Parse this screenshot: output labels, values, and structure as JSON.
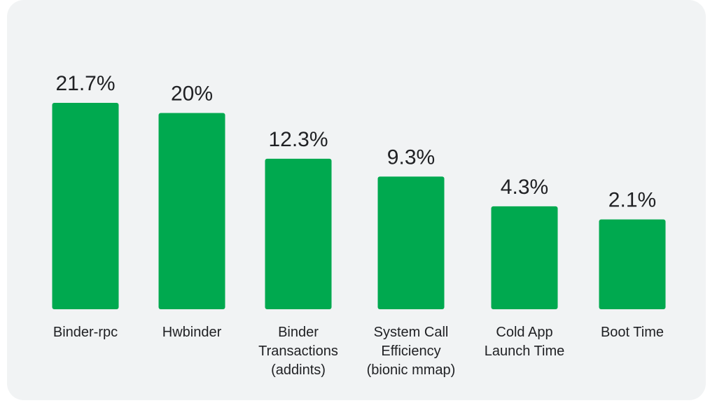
{
  "chart_data": {
    "type": "bar",
    "categories": [
      [
        "Binder-rpc"
      ],
      [
        "Hwbinder"
      ],
      [
        "Binder",
        "Transactions",
        "(addints)"
      ],
      [
        "System Call",
        "Efficiency",
        "(bionic mmap)"
      ],
      [
        "Cold App",
        "Launch Time"
      ],
      [
        "Boot Time"
      ]
    ],
    "values": [
      21.7,
      20,
      12.3,
      9.3,
      4.3,
      2.1
    ],
    "value_labels": [
      "21.7%",
      "20%",
      "12.3%",
      "9.3%",
      "4.3%",
      "2.1%"
    ],
    "title": "",
    "xlabel": "",
    "ylabel": "",
    "ylim": [
      -13,
      21.7
    ],
    "grid": false,
    "bar_color": "#00a94f"
  }
}
